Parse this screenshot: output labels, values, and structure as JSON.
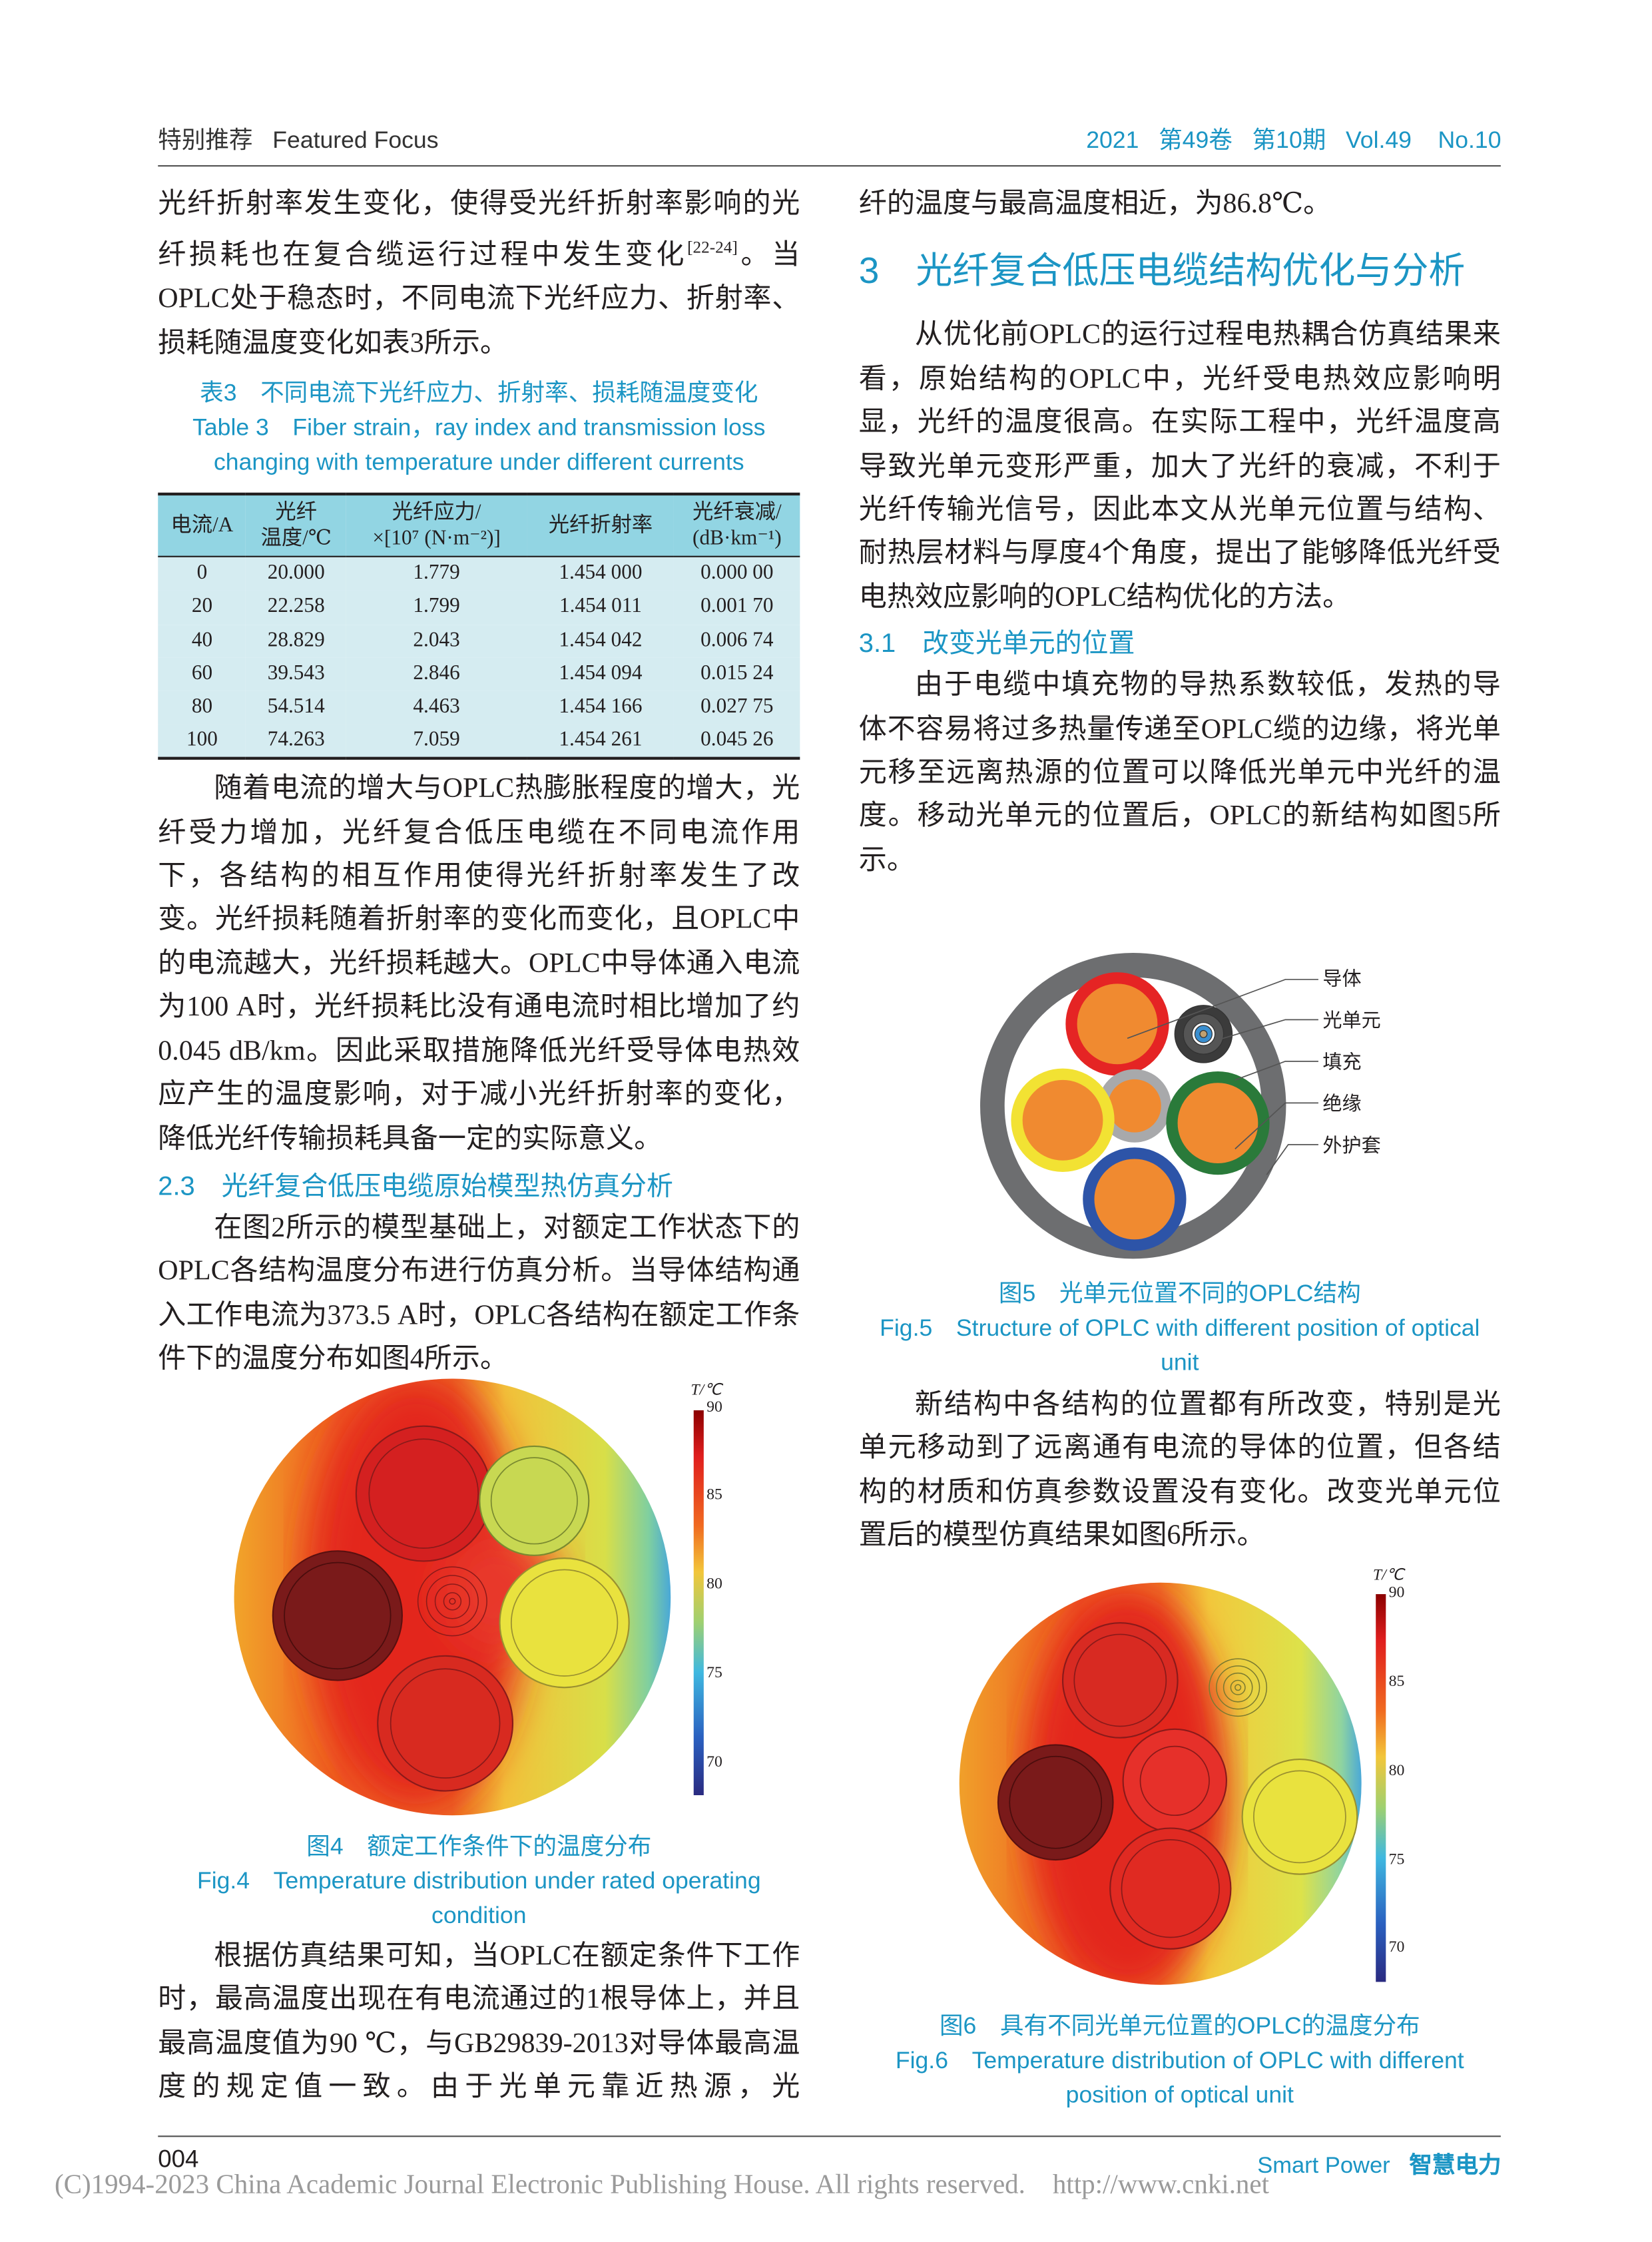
{
  "header": {
    "left_cn": "特别推荐",
    "left_en": "Featured Focus",
    "year": "2021",
    "volume_cn": "第49卷",
    "issue_cn": "第10期",
    "vol": "Vol.49",
    "no": "No.10"
  },
  "left": {
    "p1_a": "光纤折射率发生变化，使得受光纤折射率影响的光纤损耗也在复合缆运行过程中发生变化",
    "p1_cite": "[22-24]",
    "p1_b": "。当OPLC处于稳态时，不同电流下光纤应力、折射率、损耗随温度变化如表3所示。",
    "table": {
      "caption_cn": "表3　不同电流下光纤应力、折射率、损耗随温度变化",
      "caption_en_1": "Table 3　Fiber strain，ray index and transmission loss",
      "caption_en_2": "changing with temperature under different currents",
      "headers": [
        "电流/A",
        "光纤\n温度/℃",
        "光纤应力/\n×[10⁷ (N·m⁻²)]",
        "光纤折射率",
        "光纤衰减/\n(dB·km⁻¹)"
      ],
      "rows": [
        [
          "0",
          "20.000",
          "1.779",
          "1.454 000",
          "0.000 00"
        ],
        [
          "20",
          "22.258",
          "1.799",
          "1.454 011",
          "0.001 70"
        ],
        [
          "40",
          "28.829",
          "2.043",
          "1.454 042",
          "0.006 74"
        ],
        [
          "60",
          "39.543",
          "2.846",
          "1.454 094",
          "0.015 24"
        ],
        [
          "80",
          "54.514",
          "4.463",
          "1.454 166",
          "0.027 75"
        ],
        [
          "100",
          "74.263",
          "7.059",
          "1.454 261",
          "0.045 26"
        ]
      ]
    },
    "p2": "随着电流的增大与OPLC热膨胀程度的增大，光纤受力增加，光纤复合低压电缆在不同电流作用下，各结构的相互作用使得光纤折射率发生了改变。光纤损耗随着折射率的变化而变化，且OPLC中的电流越大，光纤损耗越大。OPLC中导体通入电流为100 A时，光纤损耗比没有通电流时相比增加了约0.045 dB/km。因此采取措施降低光纤受导体电热效应产生的温度影响，对于减小光纤折射率的变化，降低光纤传输损耗具备一定的实际意义。",
    "h_2_3": "2.3　光纤复合低压电缆原始模型热仿真分析",
    "p3": "在图2所示的模型基础上，对额定工作状态下的OPLC各结构温度分布进行仿真分析。当导体结构通入工作电流为373.5 A时，OPLC各结构在额定工作条件下的温度分布如图4所示。",
    "fig4": {
      "colorbar_title": "T/℃",
      "ticks": [
        "90",
        "85",
        "80",
        "75",
        "70"
      ],
      "caption_cn": "图4　额定工作条件下的温度分布",
      "caption_en_1": "Fig.4　Temperature distribution under rated operating",
      "caption_en_2": "condition"
    },
    "p4": "根据仿真结果可知，当OPLC在额定条件下工作时，最高温度出现在有电流通过的1根导体上，并且最高温度值为90 ℃，与GB29839-2013对导体最高温度的规定值一致。由于光单元靠近热源，光"
  },
  "right": {
    "p0": "纤的温度与最高温度相近，为86.8℃。",
    "h_3": "3　光纤复合低压电缆结构优化与分析",
    "p5": "从优化前OPLC的运行过程电热耦合仿真结果来看，原始结构的OPLC中，光纤受电热效应影响明显，光纤的温度很高。在实际工程中，光纤温度高导致光单元变形严重，加大了光纤的衰减，不利于光纤传输光信号，因此本文从光单元位置与结构、耐热层材料与厚度4个角度，提出了能够降低光纤受电热效应影响的OPLC结构优化的方法。",
    "h_3_1": "3.1　改变光单元的位置",
    "p6": "由于电缆中填充物的导热系数较低，发热的导体不容易将过多热量传递至OPLC缆的边缘，将光单元移至远离热源的位置可以降低光单元中光纤的温度。移动光单元的位置后，OPLC的新结构如图5所示。",
    "fig5": {
      "labels": [
        "导体",
        "光单元",
        "填充",
        "绝缘",
        "外护套"
      ],
      "caption_cn": "图5　光单元位置不同的OPLC结构",
      "caption_en_1": "Fig.5　Structure of OPLC with different position of optical",
      "caption_en_2": "unit"
    },
    "p7": "新结构中各结构的位置都有所改变，特别是光单元移动到了远离通有电流的导体的位置，但各结构的材质和仿真参数设置没有变化。改变光单元位置后的模型仿真结果如图6所示。",
    "fig6": {
      "colorbar_title": "T/℃",
      "ticks": [
        "90",
        "85",
        "80",
        "75",
        "70"
      ],
      "caption_cn": "图6　具有不同光单元位置的OPLC的温度分布",
      "caption_en_1": "Fig.6　Temperature distribution of OPLC with different",
      "caption_en_2": "position of optical unit"
    }
  },
  "footer": {
    "page": "004",
    "brand_en": "Smart Power",
    "brand_cn": "智慧电力",
    "copyright": "(C)1994-2023 China Academic Journal Electronic Publishing House. All rights reserved.",
    "url": "http://www.cnki.net"
  },
  "colors": {
    "accent": "#1b95c4",
    "table_header": "#92d5e3",
    "table_body": "#d5ecf1"
  }
}
